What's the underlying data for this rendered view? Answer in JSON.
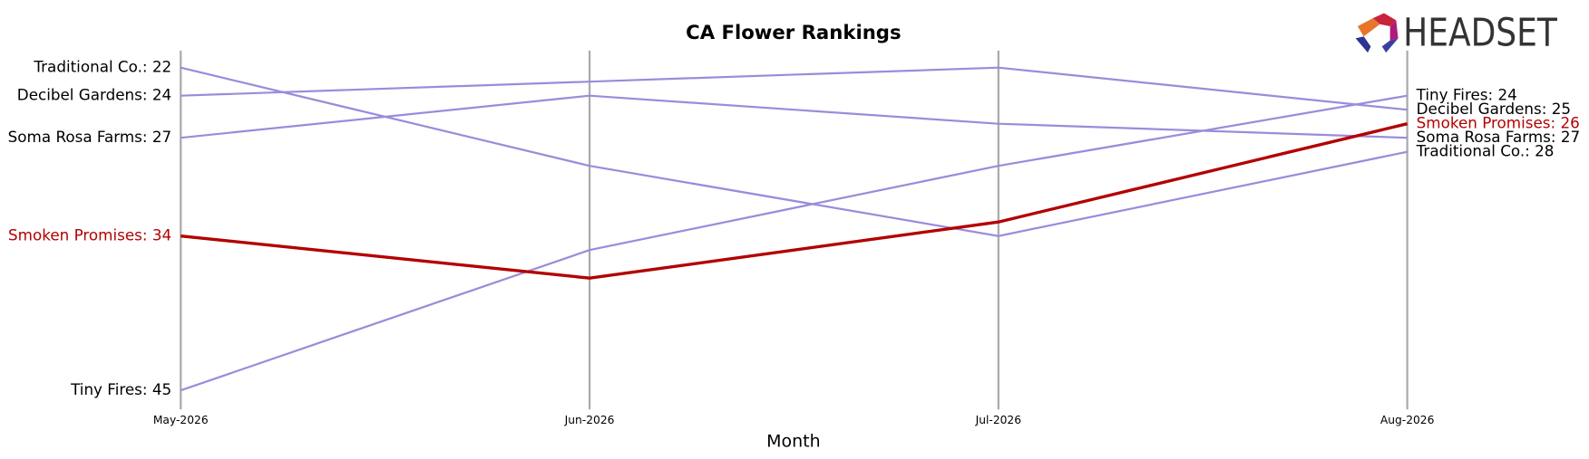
{
  "brand": "HEADSET",
  "chart_data": {
    "type": "line",
    "title": "CA Flower Rankings",
    "xlabel": "Month",
    "categories": [
      "May-2026",
      "Jun-2026",
      "Jul-2026",
      "Aug-2026"
    ],
    "ylim": [
      46,
      21
    ],
    "grid": true,
    "series": [
      {
        "name": "Traditional Co.",
        "color": "#9a8cdb",
        "values": [
          22,
          29,
          34,
          28
        ],
        "value_labels": [
          "Traditional Co.: 22",
          null,
          null,
          "Traditional Co.: 28"
        ]
      },
      {
        "name": "Decibel Gardens",
        "color": "#9a8cdb",
        "values": [
          24,
          23,
          22,
          25
        ],
        "value_labels": [
          "Decibel Gardens: 24",
          null,
          null,
          "Decibel Gardens: 25"
        ]
      },
      {
        "name": "Soma Rosa Farms",
        "color": "#9a8cdb",
        "values": [
          27,
          24,
          26,
          27
        ],
        "value_labels": [
          "Soma Rosa Farms: 27",
          null,
          null,
          "Soma Rosa Farms: 27"
        ]
      },
      {
        "name": "Tiny Fires",
        "color": "#9a8cdb",
        "values": [
          45,
          35,
          29,
          24
        ],
        "value_labels": [
          "Tiny Fires: 45",
          null,
          null,
          "Tiny Fires: 24"
        ]
      },
      {
        "name": "Smoken Promises",
        "color": "#b30000",
        "highlight": true,
        "values": [
          34,
          37,
          33,
          26
        ],
        "value_labels": [
          "Smoken Promises: 34",
          null,
          null,
          "Smoken Promises: 26"
        ]
      }
    ]
  }
}
